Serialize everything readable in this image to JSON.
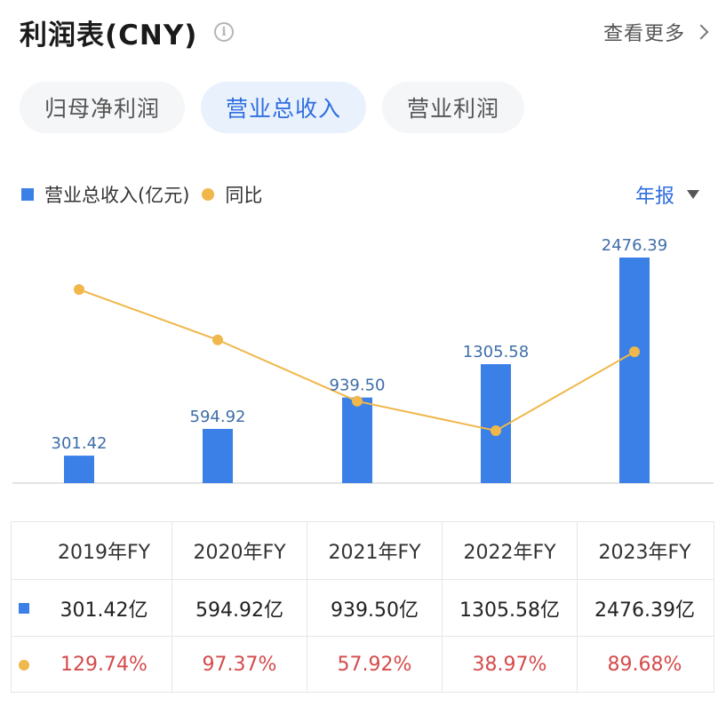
{
  "header": {
    "title": "利润表(CNY)",
    "info_icon": "info-icon",
    "more_label": "查看更多"
  },
  "tabs": [
    {
      "label": "归母净利润",
      "active": false
    },
    {
      "label": "营业总收入",
      "active": true
    },
    {
      "label": "营业利润",
      "active": false
    }
  ],
  "legend": {
    "bar_label": "营业总收入(亿元)",
    "line_label": "同比"
  },
  "period": {
    "label": "年报"
  },
  "colors": {
    "bar": "#3a80e6",
    "line": "#f0b74a",
    "accent": "#2f6ee0",
    "negative_text": "#d54b4b"
  },
  "chart_data": {
    "type": "bar",
    "categories": [
      "2019年FY",
      "2020年FY",
      "2021年FY",
      "2022年FY",
      "2023年FY"
    ],
    "series": [
      {
        "name": "营业总收入(亿元)",
        "type": "bar",
        "values": [
          301.42,
          594.92,
          939.5,
          1305.58,
          2476.39
        ],
        "labels": [
          "301.42",
          "594.92",
          "939.50",
          "1305.58",
          "2476.39"
        ]
      },
      {
        "name": "同比",
        "type": "line",
        "values": [
          129.74,
          97.37,
          57.92,
          38.97,
          89.68
        ],
        "unit": "%"
      }
    ],
    "grid": false,
    "legend_position": "top-left"
  },
  "table": {
    "headers": [
      "2019年FY",
      "2020年FY",
      "2021年FY",
      "2022年FY",
      "2023年FY"
    ],
    "revenue": [
      "301.42亿",
      "594.92亿",
      "939.50亿",
      "1305.58亿",
      "2476.39亿"
    ],
    "yoy": [
      "129.74%",
      "97.37%",
      "57.92%",
      "38.97%",
      "89.68%"
    ]
  }
}
